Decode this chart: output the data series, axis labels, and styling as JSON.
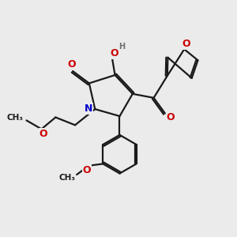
{
  "bg_color": "#ebebeb",
  "bond_color": "#1a1a1a",
  "N_color": "#0000cc",
  "O_color": "#cc0000",
  "H_color": "#707070",
  "lw": 1.6,
  "dbo": 0.07,
  "figsize": [
    3.0,
    3.0
  ],
  "dpi": 100,
  "xlim": [
    0,
    10
  ],
  "ylim": [
    0,
    10
  ]
}
